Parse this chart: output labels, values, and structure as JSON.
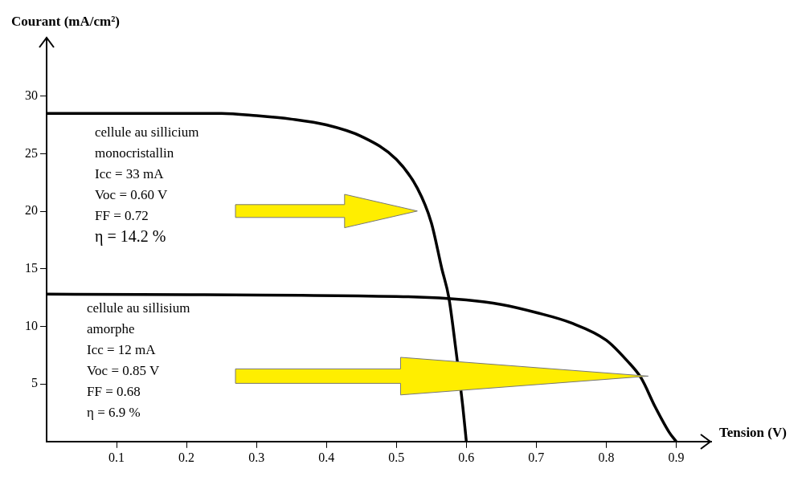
{
  "chart_data": {
    "type": "line",
    "xlabel": "Tension (V)",
    "ylabel": "Courant (mA/cm²)",
    "xlim": [
      0,
      0.95
    ],
    "xticks": [
      0.1,
      0.2,
      0.3,
      0.4,
      0.5,
      0.6,
      0.7,
      0.8,
      0.9
    ],
    "ylim": [
      0,
      35
    ],
    "yticks": [
      5,
      10,
      15,
      20,
      25,
      30
    ],
    "series": [
      {
        "color": "#000000",
        "x": [
          0,
          0.25,
          0.3,
          0.35,
          0.4,
          0.45,
          0.5,
          0.53,
          0.55,
          0.565,
          0.575,
          0.585,
          0.595,
          0.6
        ],
        "values": [
          28.5,
          28.5,
          28.3,
          28,
          27.5,
          26.5,
          24.5,
          22,
          19,
          15,
          12.5,
          8,
          3,
          0
        ]
      },
      {
        "color": "#000000",
        "x": [
          0,
          0.5,
          0.6,
          0.65,
          0.7,
          0.75,
          0.8,
          0.83,
          0.85,
          0.87,
          0.89,
          0.9
        ],
        "values": [
          12.8,
          12.6,
          12.3,
          11.9,
          11.2,
          10.3,
          8.8,
          7,
          5.5,
          3,
          0.8,
          0
        ]
      }
    ],
    "annotations": [
      "cellule au sillicium\nmonocristallin\nIcc = 33 mA\nVoc = 0.60 V\nFF = 0.72\nη = 14.2 %",
      "cellule au sillisium\namorphe\nIcc = 12 mA\nVoc = 0.85 V\nFF = 0.68\nη = 6.9 %"
    ],
    "grid": false,
    "legend": false,
    "marker": "none",
    "line_style": "solid"
  }
}
